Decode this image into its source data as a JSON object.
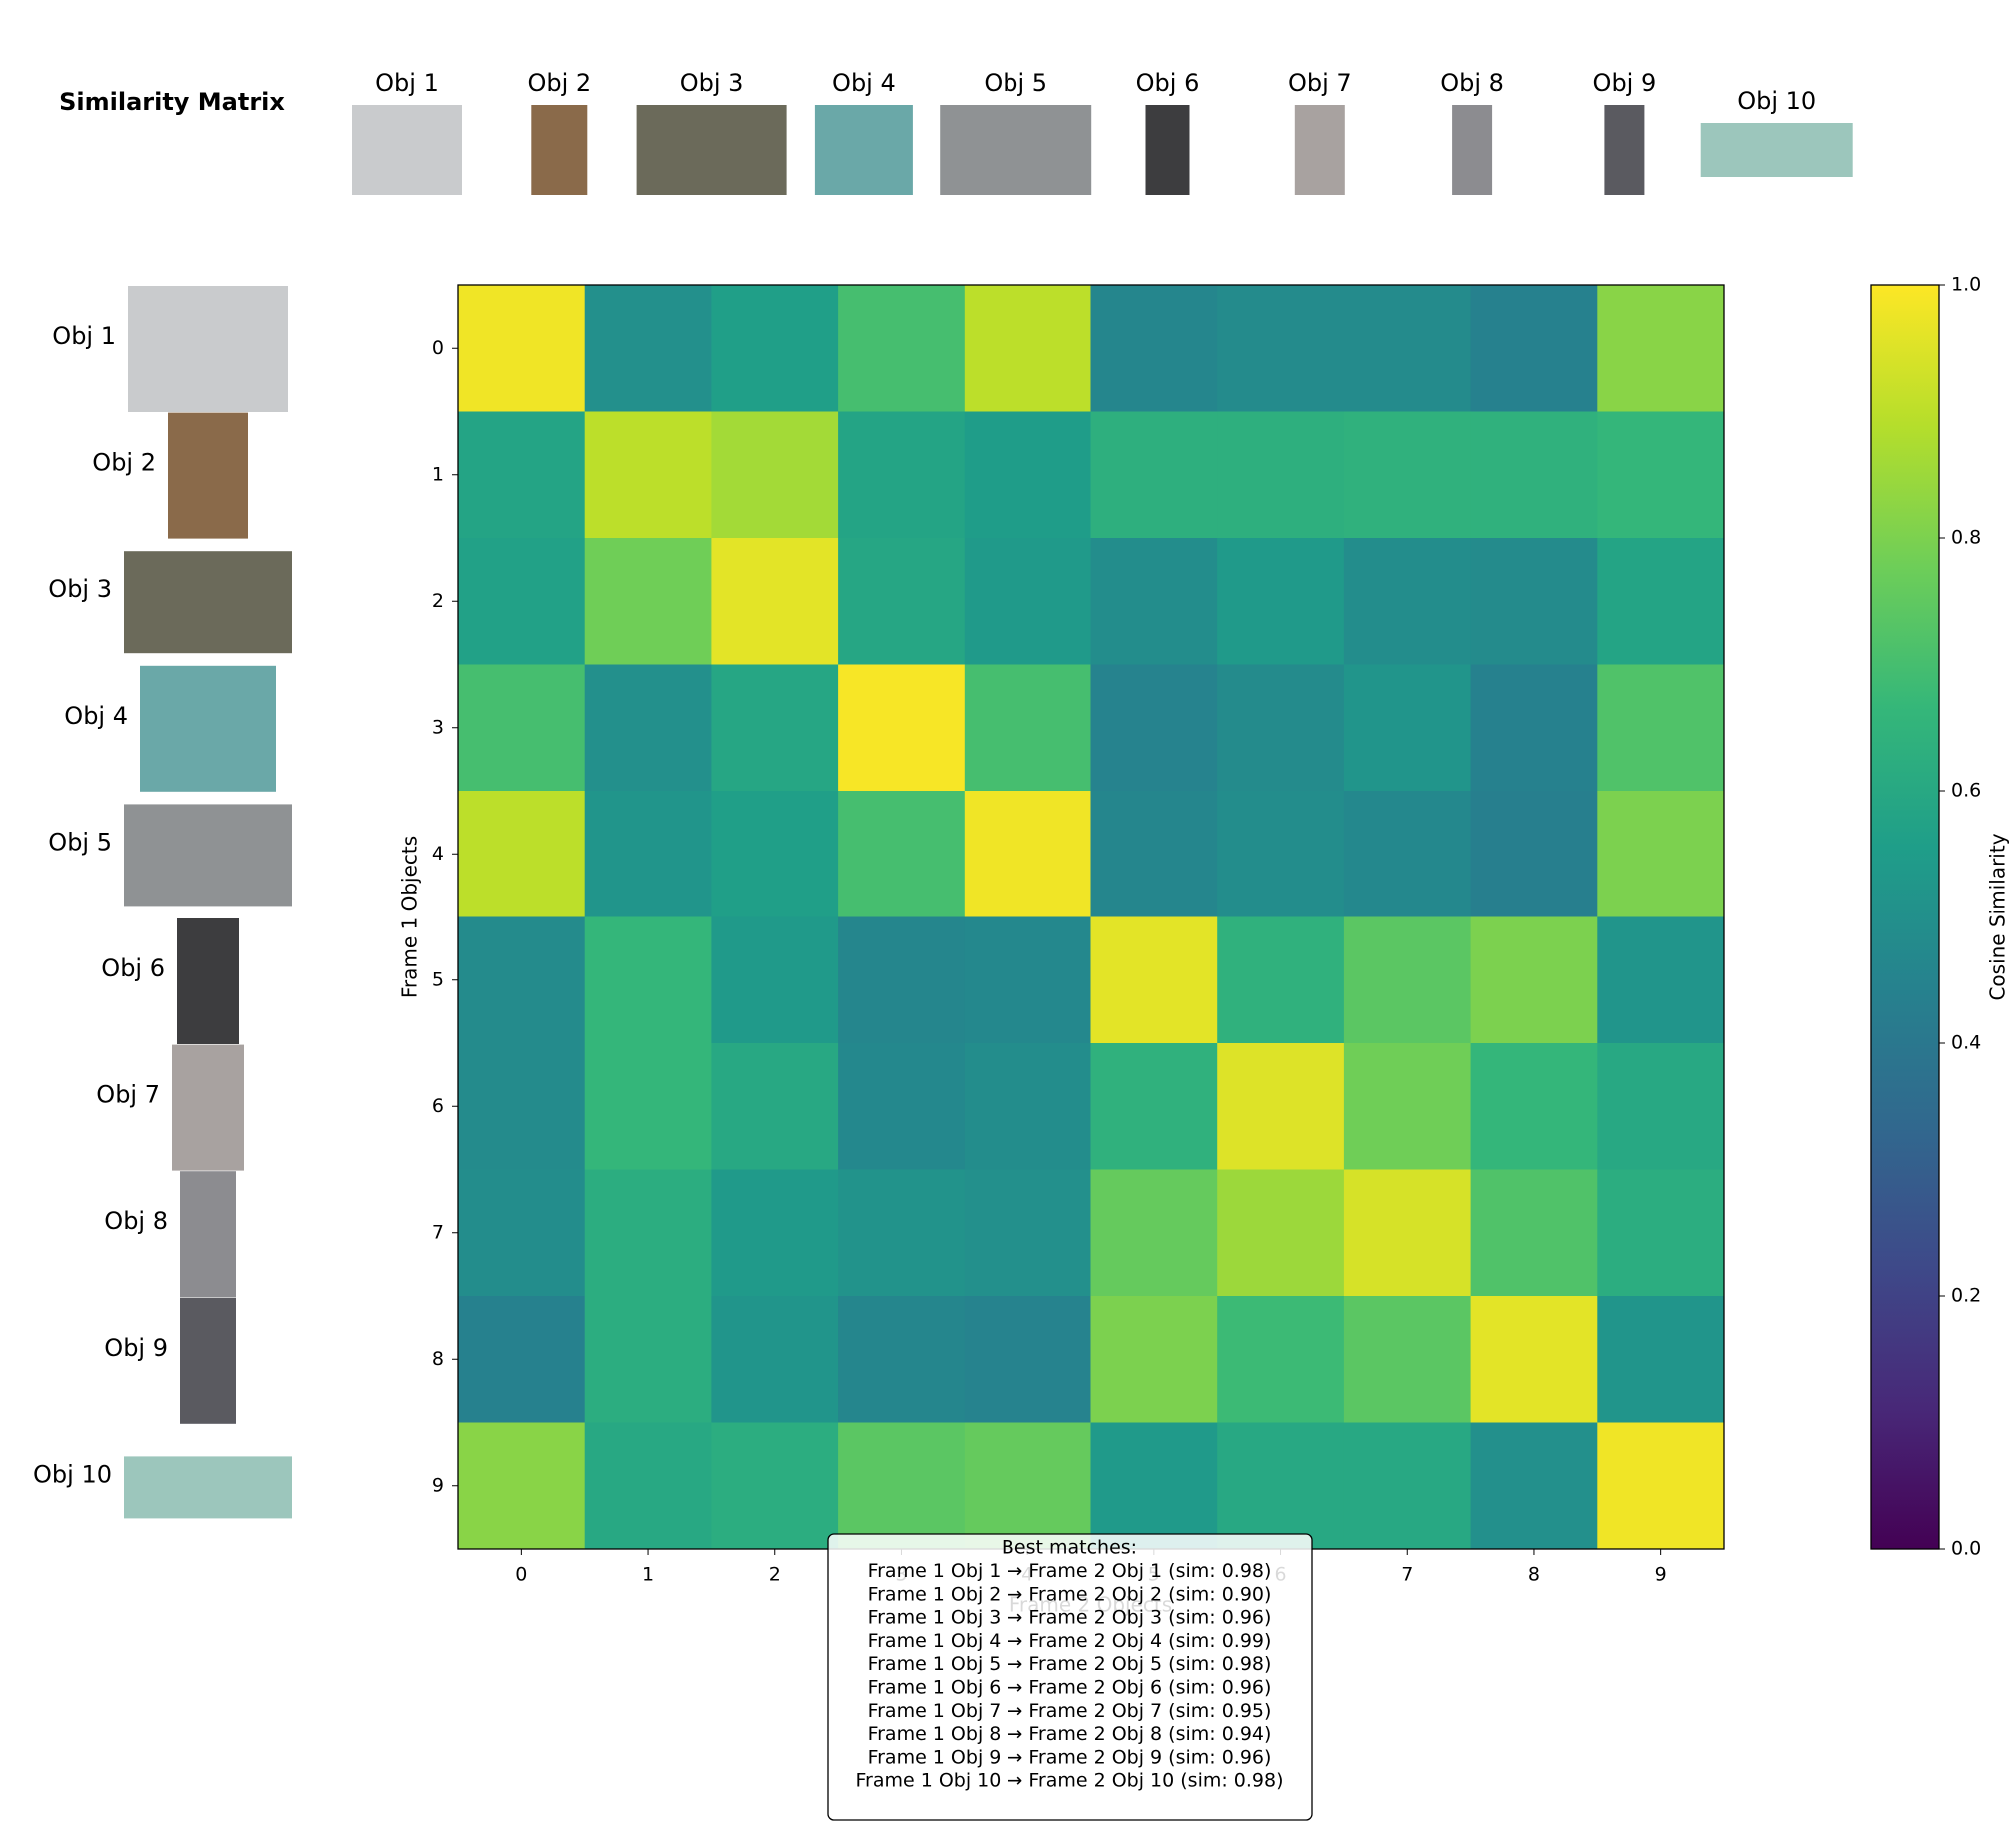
{
  "title": "Similarity Matrix",
  "top_labels": [
    "Obj 1",
    "Obj 2",
    "Obj 3",
    "Obj 4",
    "Obj 5",
    "Obj 6",
    "Obj 7",
    "Obj 8",
    "Obj 9",
    "Obj 10"
  ],
  "left_labels": [
    "Obj 1",
    "Obj 2",
    "Obj 3",
    "Obj 4",
    "Obj 5",
    "Obj 6",
    "Obj 7",
    "Obj 8",
    "Obj 9",
    "Obj 10"
  ],
  "chart_data": {
    "type": "heatmap",
    "xlabel": "Frame 2 Objects",
    "ylabel": "Frame 1 Objects",
    "xticks": [
      0,
      1,
      2,
      3,
      4,
      5,
      6,
      7,
      8,
      9
    ],
    "yticks": [
      0,
      1,
      2,
      3,
      4,
      5,
      6,
      7,
      8,
      9
    ],
    "colormap": "viridis",
    "clim": [
      0,
      1
    ],
    "colorbar_label": "Cosine Similarity",
    "colorbar_ticks": [
      {
        "value": 0,
        "label": "0.0"
      },
      {
        "value": 0.2,
        "label": "0.2"
      },
      {
        "value": 0.4,
        "label": "0.4"
      },
      {
        "value": 0.6,
        "label": "0.6"
      },
      {
        "value": 0.8,
        "label": "0.8"
      },
      {
        "value": 1,
        "label": "1.0"
      }
    ],
    "values": [
      [
        0.98,
        0.5,
        0.56,
        0.7,
        0.9,
        0.46,
        0.48,
        0.48,
        0.44,
        0.82
      ],
      [
        0.58,
        0.9,
        0.86,
        0.58,
        0.55,
        0.63,
        0.63,
        0.64,
        0.64,
        0.66
      ],
      [
        0.57,
        0.78,
        0.96,
        0.59,
        0.54,
        0.49,
        0.54,
        0.49,
        0.48,
        0.58
      ],
      [
        0.7,
        0.5,
        0.59,
        0.99,
        0.7,
        0.45,
        0.48,
        0.52,
        0.44,
        0.72
      ],
      [
        0.9,
        0.52,
        0.56,
        0.7,
        0.98,
        0.46,
        0.49,
        0.47,
        0.43,
        0.8
      ],
      [
        0.48,
        0.66,
        0.54,
        0.46,
        0.47,
        0.96,
        0.64,
        0.74,
        0.8,
        0.52
      ],
      [
        0.48,
        0.66,
        0.6,
        0.47,
        0.49,
        0.64,
        0.95,
        0.78,
        0.66,
        0.6
      ],
      [
        0.49,
        0.62,
        0.54,
        0.51,
        0.5,
        0.76,
        0.85,
        0.94,
        0.72,
        0.62
      ],
      [
        0.44,
        0.62,
        0.52,
        0.46,
        0.45,
        0.8,
        0.68,
        0.74,
        0.96,
        0.52
      ],
      [
        0.82,
        0.6,
        0.62,
        0.74,
        0.76,
        0.54,
        0.6,
        0.6,
        0.5,
        0.98
      ]
    ]
  },
  "best_matches": {
    "title": "Best matches:",
    "lines": [
      "Frame 1 Obj 1 → Frame 2 Obj 1 (sim: 0.98)",
      "Frame 1 Obj 2 → Frame 2 Obj 2 (sim: 0.90)",
      "Frame 1 Obj 3 → Frame 2 Obj 3 (sim: 0.96)",
      "Frame 1 Obj 4 → Frame 2 Obj 4 (sim: 0.99)",
      "Frame 1 Obj 5 → Frame 2 Obj 5 (sim: 0.98)",
      "Frame 1 Obj 6 → Frame 2 Obj 6 (sim: 0.96)",
      "Frame 1 Obj 7 → Frame 2 Obj 7 (sim: 0.95)",
      "Frame 1 Obj 8 → Frame 2 Obj 8 (sim: 0.94)",
      "Frame 1 Obj 9 → Frame 2 Obj 9 (sim: 0.96)",
      "Frame 1 Obj 10 → Frame 2 Obj 10 (sim: 0.98)"
    ]
  }
}
